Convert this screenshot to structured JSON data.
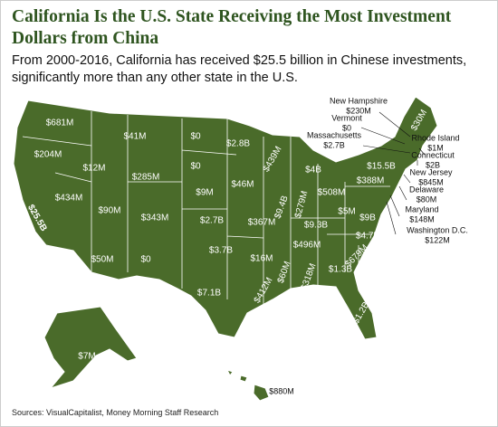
{
  "header": {
    "title": "California Is the U.S. State Receiving the Most Investment Dollars from China",
    "subtitle": "From 2000-2016, California has received $25.5 billion in Chinese investments, significantly more than any other state in the U.S."
  },
  "map": {
    "labels": [
      "$681M",
      "$204M",
      "$25.5B",
      "$434M",
      "$12M",
      "$41M",
      "$285M",
      "$90M",
      "$343M",
      "$50M",
      "$0",
      "$0",
      "$0",
      "$9M",
      "$2.7B",
      "$3.7B",
      "$7.1B",
      "$2.8B",
      "$46M",
      "$367M",
      "$16M",
      "$412M",
      "$439M",
      "$9.4B",
      "$4B",
      "$279M",
      "$508M",
      "$9.3B",
      "$496M",
      "$60M",
      "$318M",
      "$1.3B",
      "$1.2B",
      "$679M",
      "$4.7B",
      "$9B",
      "$5M",
      "$388M",
      "$15.5B",
      "$30M",
      "$7M",
      "$880M"
    ],
    "callouts": [
      {
        "state": "New Hampshire",
        "value": "$230M"
      },
      {
        "state": "Vermont",
        "value": "$0"
      },
      {
        "state": "Massachusetts",
        "value": "$2.7B"
      },
      {
        "state": "Rhode Island",
        "value": "$1M"
      },
      {
        "state": "Connecticut",
        "value": "$2B"
      },
      {
        "state": "New Jersey",
        "value": "$845M"
      },
      {
        "state": "Delaware",
        "value": "$80M"
      },
      {
        "state": "Maryland",
        "value": "$148M"
      },
      {
        "state": "Washington D.C.",
        "value": "$122M"
      }
    ]
  },
  "source": "Sources: VisualCapitalist, Money Morning Staff Research"
}
